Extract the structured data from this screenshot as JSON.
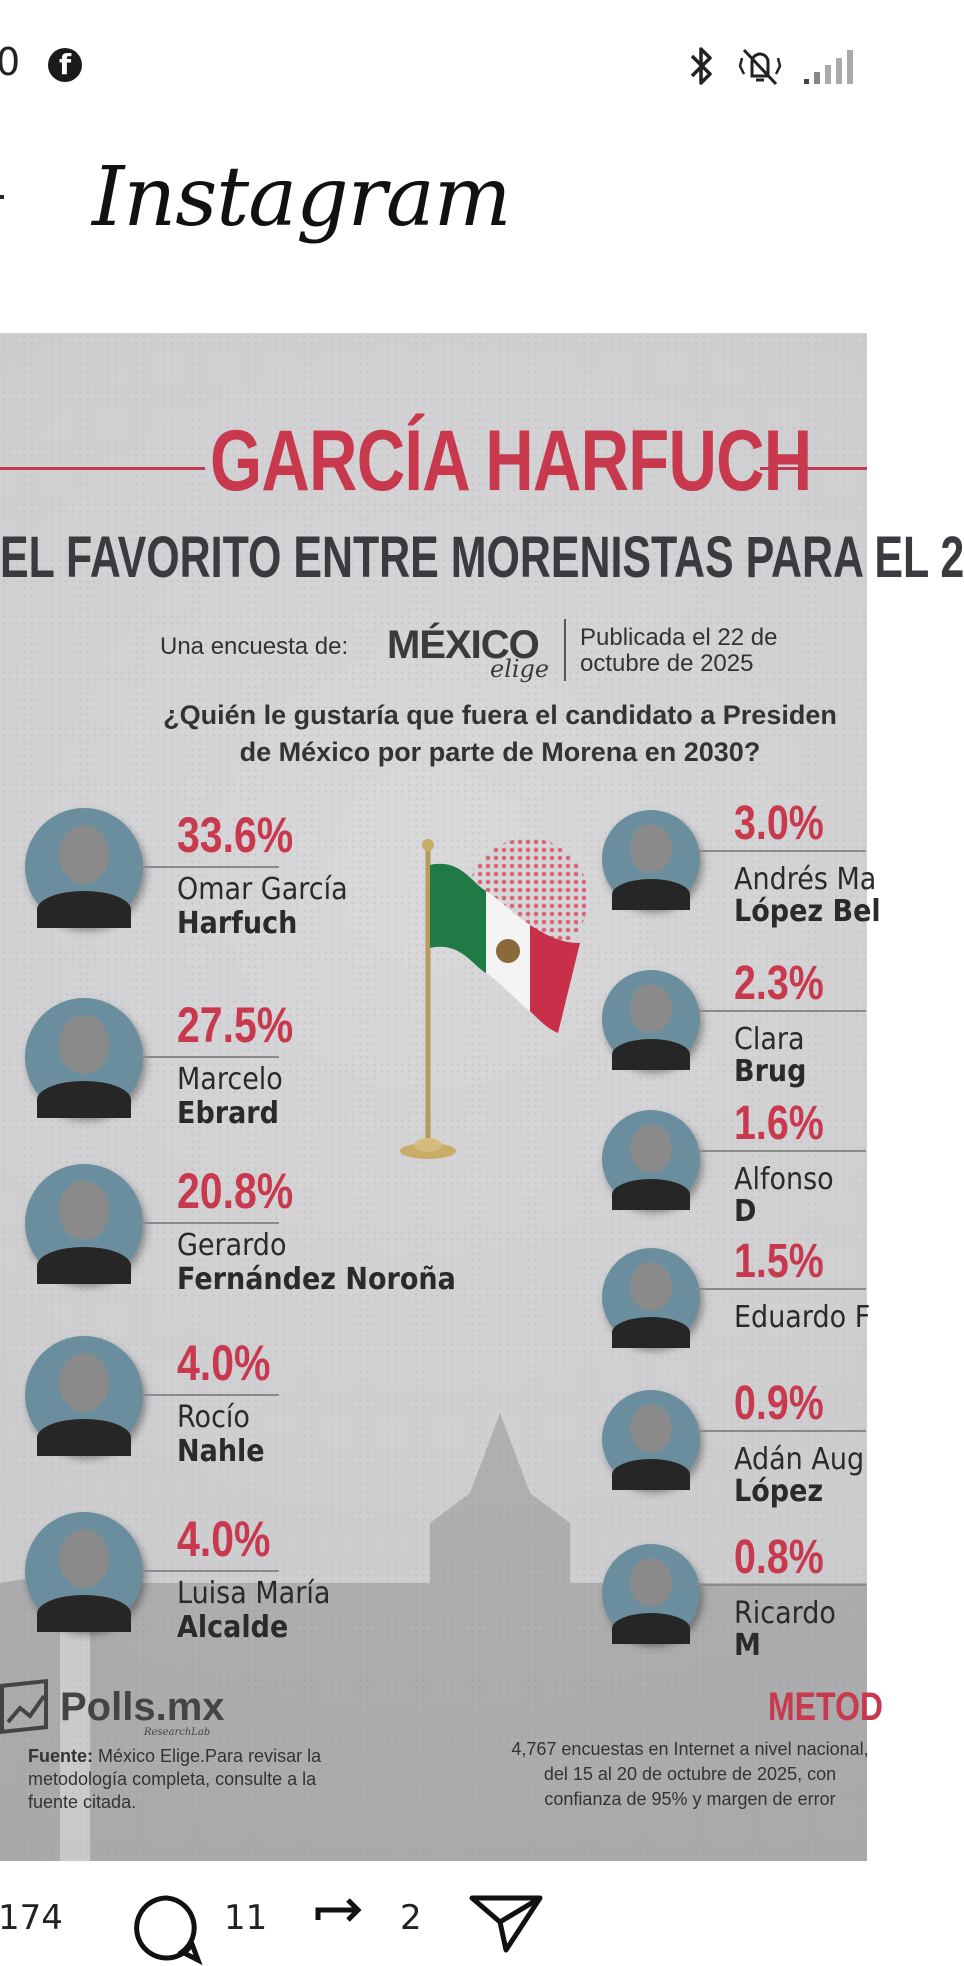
{
  "status_bar": {
    "clock_fragment": "0"
  },
  "instagram": {
    "logo_text": "Instagram"
  },
  "infographic": {
    "headline": "GARCÍA HARFUCH",
    "subhead": "EL FAVORITO ENTRE MORENISTAS PARA EL 2",
    "survey_by": "Una encuesta de:",
    "brand_name": "MÉXICO",
    "brand_script": "elige",
    "published": "Publicada el 22 de octubre de 2025",
    "question_line1": "¿Quién le gustaría que fuera el candidato a Presiden",
    "question_line2": "de México por parte de Morena en 2030?",
    "left_candidates": [
      {
        "pct": "33.6%",
        "first": "Omar García",
        "last": "Harfuch"
      },
      {
        "pct": "27.5%",
        "first": "Marcelo",
        "last": "Ebrard"
      },
      {
        "pct": "20.8%",
        "first": "Gerardo",
        "last": "Fernández Noroña"
      },
      {
        "pct": "4.0%",
        "first": "Rocío",
        "last": "Nahle"
      },
      {
        "pct": "4.0%",
        "first": "Luisa María",
        "last": "Alcalde"
      }
    ],
    "right_candidates": [
      {
        "pct": "3.0%",
        "first": "Andrés Ma",
        "last": "López Bel"
      },
      {
        "pct": "2.3%",
        "first": "Clara ",
        "last": "Brug"
      },
      {
        "pct": "1.6%",
        "first": "Alfonso ",
        "last": "D"
      },
      {
        "pct": "1.5%",
        "first": "Eduardo F",
        "last": ""
      },
      {
        "pct": "0.9%",
        "first": "Adán Aug",
        "last": "López"
      },
      {
        "pct": "0.8%",
        "first": "Ricardo ",
        "last": "M"
      }
    ],
    "polls_brand": "Polls.mx",
    "polls_sub": "ResearchLab",
    "source_label": "Fuente:",
    "source_text": " México Elige.Para revisar la metodología completa, consulte a la fuente citada.",
    "method_title": "METOD",
    "method_line1": "4,767 encuestas en Internet a nivel nacional,",
    "method_line2": "del 15 al 20 de octubre de 2025, con",
    "method_line3": "confianza de 95% y margen de error"
  },
  "actions": {
    "likes": "174",
    "comments": "11",
    "reposts": "2"
  },
  "colors": {
    "accent_red": "#c8394e",
    "photo_bg": "#6b8e9f"
  }
}
